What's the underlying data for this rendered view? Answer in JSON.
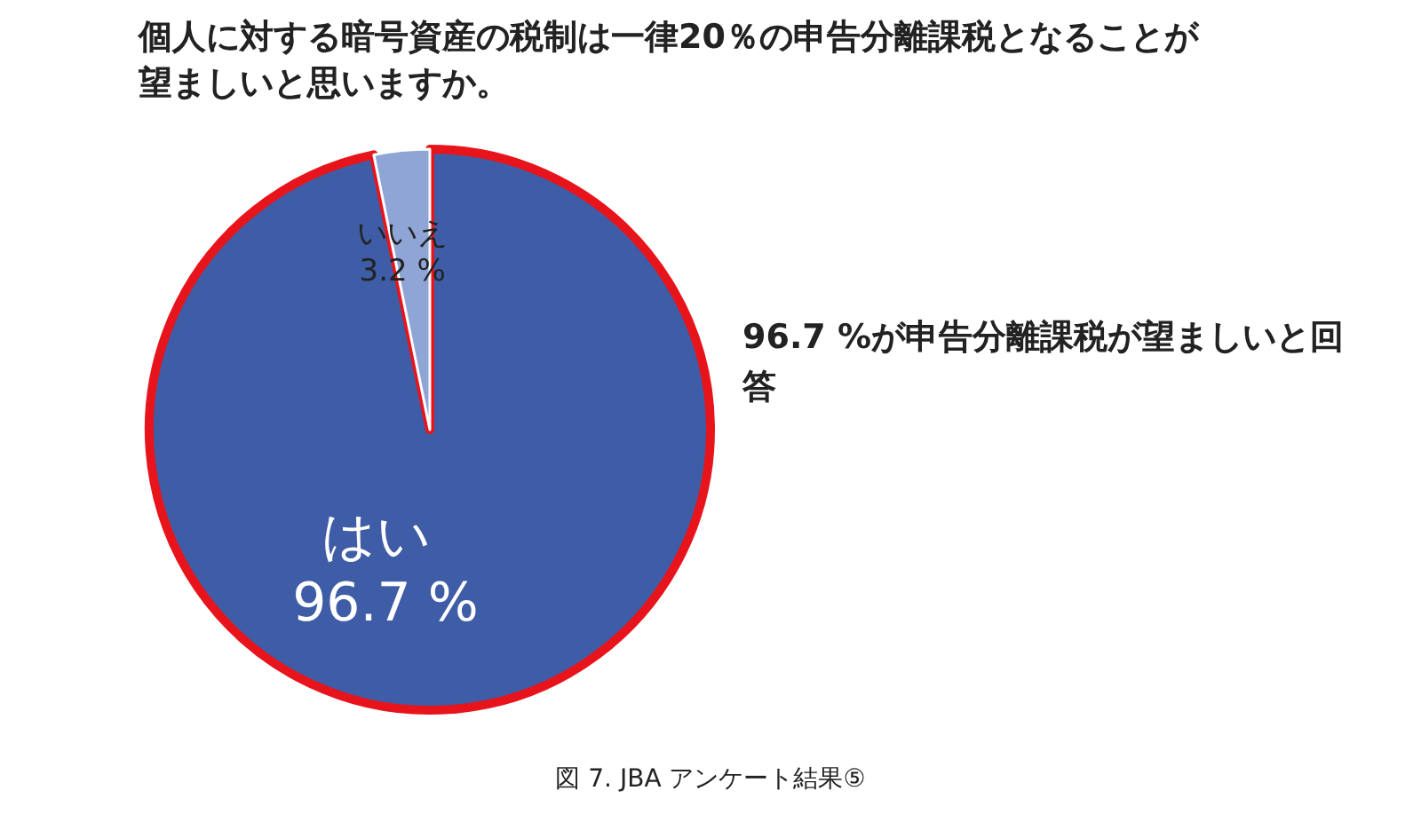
{
  "chart_data": {
    "type": "pie",
    "title": "個人に対する暗号資産の税制は一律20％の申告分離課税となることが望ましいと思いますか。",
    "categories": [
      "はい",
      "いいえ"
    ],
    "values": [
      96.7,
      3.2
    ],
    "value_labels": [
      "96.7 %",
      "3.2 %"
    ],
    "colors": [
      "#3e5da6",
      "#8fa5d6"
    ],
    "annotations": [
      "96.7 %が申告分離課税が望ましいと回答",
      "図 7. JBA アンケート結果⑤"
    ]
  }
}
